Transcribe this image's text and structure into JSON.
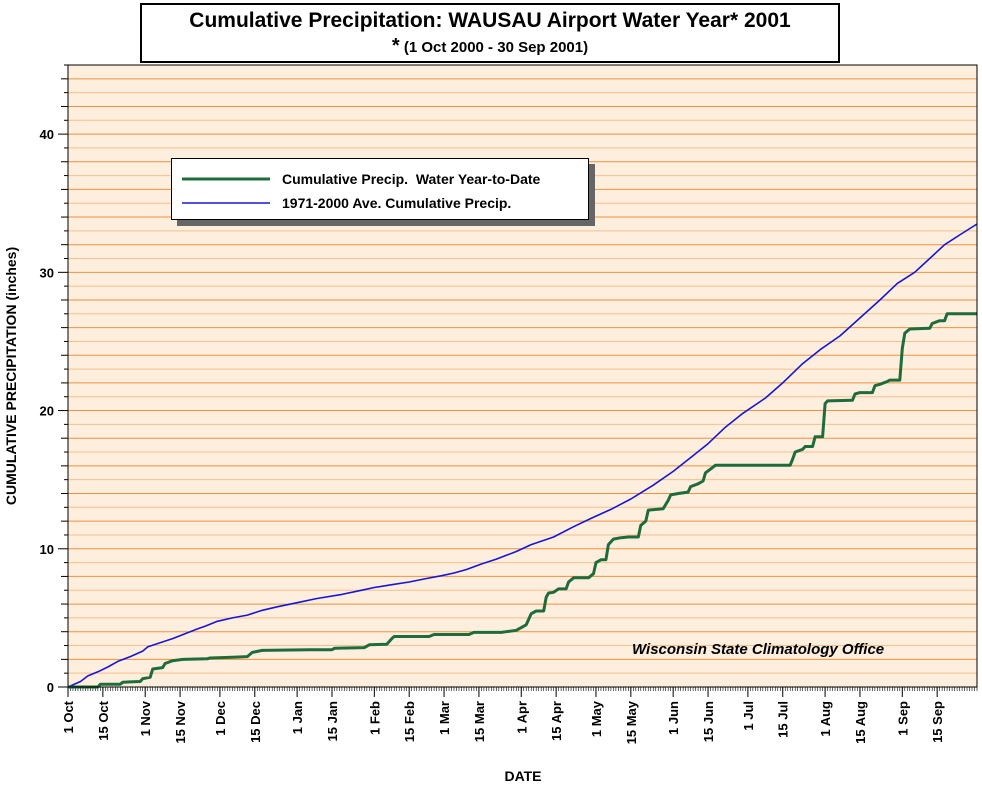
{
  "title": {
    "main": "Cumulative Precipitation: WAUSAU Airport Water Year* 2001",
    "star": "*",
    "sub": "(1 Oct 2000 - 30 Sep 2001)"
  },
  "credit": "Wisconsin State Climatology Office",
  "colors": {
    "plot_bg": "#fdeedd",
    "grid_major": "#f29040",
    "grid_minor": "#f6bf8c",
    "actual": "#1e6b3c",
    "average": "#1616d8"
  },
  "chart_data": {
    "type": "line",
    "title": "Cumulative Precipitation: WAUSAU Airport Water Year* 2001",
    "subtitle": "* (1 Oct 2000 - 30 Sep 2001)",
    "xlabel": "DATE",
    "ylabel": "CUMULATIVE PRECIPITATION (inches)",
    "ylim": [
      0,
      45
    ],
    "xlim": [
      0,
      365
    ],
    "y_ticks": [
      0,
      10,
      20,
      30,
      40
    ],
    "x_ticks": [
      {
        "label": "1 Oct",
        "day": 0
      },
      {
        "label": "15 Oct",
        "day": 14
      },
      {
        "label": "1 Nov",
        "day": 31
      },
      {
        "label": "15 Nov",
        "day": 45
      },
      {
        "label": "1 Dec",
        "day": 61
      },
      {
        "label": "15 Dec",
        "day": 75
      },
      {
        "label": "1 Jan",
        "day": 92
      },
      {
        "label": "15 Jan",
        "day": 106
      },
      {
        "label": "1 Feb",
        "day": 123
      },
      {
        "label": "15 Feb",
        "day": 137
      },
      {
        "label": "1 Mar",
        "day": 151
      },
      {
        "label": "15 Mar",
        "day": 165
      },
      {
        "label": "1 Apr",
        "day": 182
      },
      {
        "label": "15 Apr",
        "day": 196
      },
      {
        "label": "1 May",
        "day": 212
      },
      {
        "label": "15 May",
        "day": 226
      },
      {
        "label": "1 Jun",
        "day": 243
      },
      {
        "label": "15 Jun",
        "day": 257
      },
      {
        "label": "1 Jul",
        "day": 273
      },
      {
        "label": "15 Jul",
        "day": 287
      },
      {
        "label": "1 Aug",
        "day": 304
      },
      {
        "label": "15 Aug",
        "day": 318
      },
      {
        "label": "1 Sep",
        "day": 335
      },
      {
        "label": "15 Sep",
        "day": 349
      }
    ],
    "grid": true,
    "legend_position": "upper-left",
    "series": [
      {
        "name": "Cumulative Precip.  Water Year-to-Date",
        "color": "#1e6b3c",
        "points": [
          [
            0,
            0
          ],
          [
            12,
            0
          ],
          [
            13,
            0.2
          ],
          [
            21,
            0.2
          ],
          [
            22,
            0.35
          ],
          [
            29,
            0.4
          ],
          [
            30,
            0.6
          ],
          [
            33,
            0.7
          ],
          [
            34,
            1.3
          ],
          [
            38,
            1.4
          ],
          [
            39,
            1.7
          ],
          [
            42,
            1.9
          ],
          [
            46,
            2.0
          ],
          [
            56,
            2.05
          ],
          [
            57,
            2.1
          ],
          [
            66,
            2.15
          ],
          [
            72,
            2.2
          ],
          [
            74,
            2.5
          ],
          [
            78,
            2.65
          ],
          [
            97,
            2.7
          ],
          [
            106,
            2.7
          ],
          [
            107,
            2.8
          ],
          [
            119,
            2.85
          ],
          [
            121,
            3.05
          ],
          [
            128,
            3.1
          ],
          [
            130,
            3.5
          ],
          [
            131,
            3.65
          ],
          [
            145,
            3.65
          ],
          [
            147,
            3.8
          ],
          [
            161,
            3.8
          ],
          [
            163,
            3.95
          ],
          [
            174,
            3.95
          ],
          [
            176,
            4.0
          ],
          [
            180,
            4.1
          ],
          [
            184,
            4.5
          ],
          [
            186,
            5.3
          ],
          [
            188,
            5.5
          ],
          [
            191,
            5.5
          ],
          [
            192,
            6.5
          ],
          [
            193,
            6.8
          ],
          [
            195,
            6.85
          ],
          [
            197,
            7.1
          ],
          [
            200,
            7.1
          ],
          [
            201,
            7.6
          ],
          [
            203,
            7.9
          ],
          [
            209,
            7.9
          ],
          [
            211,
            8.2
          ],
          [
            212,
            9.0
          ],
          [
            214,
            9.2
          ],
          [
            216,
            9.2
          ],
          [
            217,
            10.3
          ],
          [
            219,
            10.7
          ],
          [
            222,
            10.8
          ],
          [
            225,
            10.85
          ],
          [
            229,
            10.85
          ],
          [
            230,
            11.7
          ],
          [
            232,
            12.0
          ],
          [
            233,
            12.8
          ],
          [
            239,
            12.9
          ],
          [
            241,
            13.5
          ],
          [
            242,
            13.9
          ],
          [
            245,
            14.0
          ],
          [
            249,
            14.1
          ],
          [
            250,
            14.5
          ],
          [
            253,
            14.7
          ],
          [
            255,
            14.9
          ],
          [
            256,
            15.5
          ],
          [
            259,
            15.9
          ],
          [
            260,
            16.05
          ],
          [
            270,
            16.05
          ],
          [
            290,
            16.05
          ],
          [
            291,
            16.5
          ],
          [
            292,
            17.0
          ],
          [
            295,
            17.2
          ],
          [
            296,
            17.4
          ],
          [
            299,
            17.4
          ],
          [
            300,
            18.1
          ],
          [
            303,
            18.1
          ],
          [
            304,
            20.5
          ],
          [
            305,
            20.7
          ],
          [
            315,
            20.75
          ],
          [
            316,
            21.2
          ],
          [
            318,
            21.3
          ],
          [
            323,
            21.3
          ],
          [
            324,
            21.8
          ],
          [
            326,
            21.9
          ],
          [
            329,
            22.1
          ],
          [
            330,
            22.2
          ],
          [
            334,
            22.2
          ],
          [
            335,
            24.5
          ],
          [
            336,
            25.6
          ],
          [
            338,
            25.9
          ],
          [
            346,
            25.95
          ],
          [
            347,
            26.3
          ],
          [
            350,
            26.5
          ],
          [
            352,
            26.5
          ],
          [
            353,
            27.0
          ],
          [
            365,
            27.0
          ]
        ]
      },
      {
        "name": "1971-2000 Ave. Cumulative Precip.",
        "color": "#1616d8",
        "points": [
          [
            0,
            0
          ],
          [
            5,
            0.4
          ],
          [
            8,
            0.8
          ],
          [
            12,
            1.1
          ],
          [
            16,
            1.45
          ],
          [
            20,
            1.85
          ],
          [
            25,
            2.2
          ],
          [
            30,
            2.6
          ],
          [
            32,
            2.9
          ],
          [
            37,
            3.2
          ],
          [
            42,
            3.5
          ],
          [
            47,
            3.85
          ],
          [
            52,
            4.2
          ],
          [
            55,
            4.4
          ],
          [
            60,
            4.75
          ],
          [
            66,
            5.0
          ],
          [
            72,
            5.2
          ],
          [
            78,
            5.55
          ],
          [
            84,
            5.8
          ],
          [
            92,
            6.1
          ],
          [
            100,
            6.4
          ],
          [
            110,
            6.7
          ],
          [
            118,
            7.0
          ],
          [
            123,
            7.2
          ],
          [
            130,
            7.4
          ],
          [
            137,
            7.6
          ],
          [
            144,
            7.85
          ],
          [
            150,
            8.05
          ],
          [
            155,
            8.25
          ],
          [
            160,
            8.5
          ],
          [
            166,
            8.9
          ],
          [
            172,
            9.25
          ],
          [
            180,
            9.8
          ],
          [
            186,
            10.3
          ],
          [
            195,
            10.85
          ],
          [
            203,
            11.6
          ],
          [
            210,
            12.2
          ],
          [
            218,
            12.85
          ],
          [
            226,
            13.6
          ],
          [
            235,
            14.6
          ],
          [
            243,
            15.6
          ],
          [
            250,
            16.6
          ],
          [
            257,
            17.6
          ],
          [
            264,
            18.8
          ],
          [
            271,
            19.8
          ],
          [
            280,
            20.9
          ],
          [
            287,
            22.0
          ],
          [
            295,
            23.4
          ],
          [
            302,
            24.4
          ],
          [
            310,
            25.4
          ],
          [
            318,
            26.7
          ],
          [
            326,
            28.0
          ],
          [
            333,
            29.2
          ],
          [
            340,
            30.0
          ],
          [
            346,
            31.0
          ],
          [
            352,
            32.0
          ],
          [
            358,
            32.7
          ],
          [
            365,
            33.5
          ]
        ]
      }
    ]
  }
}
